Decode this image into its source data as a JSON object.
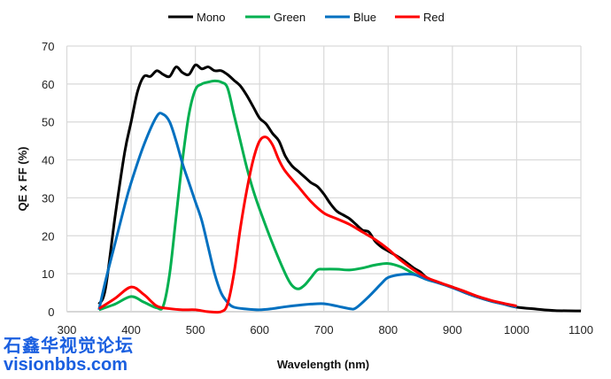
{
  "chart_data": {
    "type": "line",
    "title": "",
    "xlabel": "Wavelength (nm)",
    "ylabel": "QE x FF (%)",
    "xlim": [
      300,
      1100
    ],
    "ylim": [
      0,
      70
    ],
    "xticks": [
      300,
      400,
      500,
      600,
      700,
      800,
      900,
      1000,
      1100
    ],
    "yticks": [
      0,
      10,
      20,
      30,
      40,
      50,
      60,
      70
    ],
    "grid": true,
    "legend": "top-center",
    "series": [
      {
        "name": "Mono",
        "color": "#000000",
        "points": [
          [
            350,
            2
          ],
          [
            360,
            6
          ],
          [
            375,
            25
          ],
          [
            390,
            42
          ],
          [
            400,
            50
          ],
          [
            410,
            58
          ],
          [
            420,
            62
          ],
          [
            430,
            62
          ],
          [
            440,
            63.5
          ],
          [
            450,
            62.5
          ],
          [
            460,
            62
          ],
          [
            470,
            64.5
          ],
          [
            480,
            63
          ],
          [
            490,
            62.5
          ],
          [
            500,
            65
          ],
          [
            510,
            64
          ],
          [
            520,
            64.5
          ],
          [
            530,
            63.5
          ],
          [
            540,
            63.5
          ],
          [
            550,
            62.5
          ],
          [
            560,
            61
          ],
          [
            570,
            59.5
          ],
          [
            580,
            57
          ],
          [
            590,
            54
          ],
          [
            600,
            51
          ],
          [
            610,
            49.5
          ],
          [
            620,
            47
          ],
          [
            630,
            45
          ],
          [
            640,
            41
          ],
          [
            650,
            38.5
          ],
          [
            660,
            37
          ],
          [
            670,
            35.5
          ],
          [
            680,
            34
          ],
          [
            690,
            33
          ],
          [
            700,
            31
          ],
          [
            710,
            28.5
          ],
          [
            720,
            26.5
          ],
          [
            730,
            25.5
          ],
          [
            740,
            24.5
          ],
          [
            750,
            23
          ],
          [
            760,
            21.5
          ],
          [
            770,
            21
          ],
          [
            780,
            18.5
          ],
          [
            790,
            17
          ],
          [
            800,
            16
          ],
          [
            820,
            14
          ],
          [
            840,
            11.5
          ],
          [
            850,
            10.5
          ],
          [
            860,
            9
          ],
          [
            880,
            7.5
          ],
          [
            900,
            6.5
          ],
          [
            920,
            5
          ],
          [
            940,
            3.8
          ],
          [
            960,
            2.8
          ],
          [
            980,
            2
          ],
          [
            1000,
            1.2
          ],
          [
            1030,
            0.7
          ],
          [
            1060,
            0.3
          ],
          [
            1100,
            0.2
          ]
        ]
      },
      {
        "name": "Green",
        "color": "#00b050",
        "points": [
          [
            350,
            0.5
          ],
          [
            375,
            2
          ],
          [
            400,
            4
          ],
          [
            420,
            2.5
          ],
          [
            440,
            1
          ],
          [
            450,
            1.5
          ],
          [
            460,
            10
          ],
          [
            470,
            25
          ],
          [
            480,
            40
          ],
          [
            490,
            52
          ],
          [
            500,
            58.5
          ],
          [
            510,
            60
          ],
          [
            520,
            60.5
          ],
          [
            530,
            60.8
          ],
          [
            540,
            60.5
          ],
          [
            550,
            59
          ],
          [
            560,
            52
          ],
          [
            570,
            45
          ],
          [
            580,
            38
          ],
          [
            590,
            32
          ],
          [
            600,
            27
          ],
          [
            620,
            18
          ],
          [
            640,
            10
          ],
          [
            650,
            7
          ],
          [
            660,
            6
          ],
          [
            670,
            7
          ],
          [
            680,
            9
          ],
          [
            690,
            11
          ],
          [
            700,
            11.2
          ],
          [
            720,
            11.2
          ],
          [
            740,
            11
          ],
          [
            760,
            11.5
          ],
          [
            780,
            12.3
          ],
          [
            800,
            12.7
          ],
          [
            820,
            11.8
          ],
          [
            840,
            10
          ],
          [
            860,
            8.5
          ],
          [
            870,
            8
          ]
        ]
      },
      {
        "name": "Blue",
        "color": "#0070c0",
        "points": [
          [
            350,
            0.5
          ],
          [
            360,
            8
          ],
          [
            375,
            18
          ],
          [
            390,
            28
          ],
          [
            400,
            34
          ],
          [
            420,
            44
          ],
          [
            440,
            51.5
          ],
          [
            450,
            52
          ],
          [
            460,
            50
          ],
          [
            470,
            45
          ],
          [
            480,
            39
          ],
          [
            490,
            34
          ],
          [
            500,
            29
          ],
          [
            510,
            24
          ],
          [
            520,
            17
          ],
          [
            530,
            10
          ],
          [
            540,
            5
          ],
          [
            550,
            2.5
          ],
          [
            560,
            1.2
          ],
          [
            580,
            0.7
          ],
          [
            600,
            0.5
          ],
          [
            620,
            0.8
          ],
          [
            640,
            1.3
          ],
          [
            660,
            1.7
          ],
          [
            680,
            2
          ],
          [
            700,
            2.1
          ],
          [
            720,
            1.5
          ],
          [
            740,
            0.8
          ],
          [
            750,
            1
          ],
          [
            770,
            4
          ],
          [
            790,
            7.5
          ],
          [
            800,
            9
          ],
          [
            820,
            9.8
          ],
          [
            840,
            9.8
          ],
          [
            860,
            8.5
          ],
          [
            880,
            7.5
          ],
          [
            900,
            6.3
          ],
          [
            920,
            5
          ],
          [
            940,
            3.8
          ],
          [
            960,
            2.8
          ],
          [
            980,
            2
          ],
          [
            1000,
            1.2
          ]
        ]
      },
      {
        "name": "Red",
        "color": "#ff0000",
        "points": [
          [
            350,
            0.8
          ],
          [
            375,
            3.5
          ],
          [
            400,
            6.5
          ],
          [
            420,
            4.5
          ],
          [
            440,
            1.5
          ],
          [
            460,
            0.8
          ],
          [
            480,
            0.5
          ],
          [
            500,
            0.5
          ],
          [
            520,
            0
          ],
          [
            540,
            0
          ],
          [
            550,
            2
          ],
          [
            560,
            10
          ],
          [
            570,
            22
          ],
          [
            580,
            32
          ],
          [
            590,
            40
          ],
          [
            600,
            45
          ],
          [
            610,
            46
          ],
          [
            620,
            44
          ],
          [
            630,
            40
          ],
          [
            640,
            37
          ],
          [
            660,
            33
          ],
          [
            680,
            29
          ],
          [
            700,
            26
          ],
          [
            720,
            24.5
          ],
          [
            740,
            23
          ],
          [
            760,
            21
          ],
          [
            780,
            19
          ],
          [
            800,
            16.5
          ],
          [
            820,
            13.5
          ],
          [
            840,
            11
          ],
          [
            860,
            9
          ],
          [
            880,
            7.7
          ],
          [
            900,
            6.5
          ],
          [
            920,
            5.3
          ],
          [
            940,
            4
          ],
          [
            960,
            3
          ],
          [
            980,
            2.2
          ],
          [
            1000,
            1.5
          ]
        ]
      }
    ]
  },
  "watermark": {
    "line1": "石鑫华视觉论坛",
    "line2": "visionbbs.com"
  }
}
